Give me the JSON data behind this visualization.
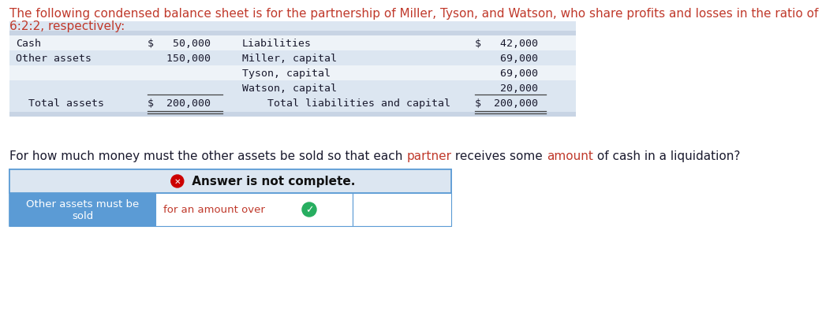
{
  "title_line1": "The following condensed balance sheet is for the partnership of Miller, Tyson, and Watson, who share profits and losses in the ratio of",
  "title_line2": "6:2:2, respectively:",
  "title_color": "#c0392b",
  "title_fontsize": 11.0,
  "table_bg_header": "#c8d4e4",
  "table_bg_light": "#dce6f1",
  "table_bg_white": "#ffffff",
  "table_font": "monospace",
  "table_fontsize": 9.5,
  "table_text_color": "#1a1a2e",
  "left_labels": [
    "Cash",
    "Other assets",
    "",
    "",
    "  Total assets"
  ],
  "left_values": [
    "$   50,000",
    "   150,000",
    "",
    "",
    "$  200,000"
  ],
  "right_labels": [
    "Liabilities",
    "Miller, capital",
    "Tyson, capital",
    "Watson, capital",
    "    Total liabilities and capital"
  ],
  "right_values": [
    "$   42,000",
    "    69,000",
    "    69,000",
    "    20,000",
    "$  200,000"
  ],
  "q_part1": "For how much money must the other assets be sold so that each ",
  "q_part2": "partner",
  "q_part3": " receives some ",
  "q_part4": "amount",
  "q_part5": " of cash in a liquidation?",
  "q_normal_color": "#1a1a2e",
  "q_highlight_color": "#c0392b",
  "q_fontsize": 11.0,
  "answer_box_bg": "#dce6f1",
  "answer_box_border": "#5b9bd5",
  "answer_strip_text": " Answer is not complete.",
  "answer_label_text": "Other assets must be\nsold",
  "answer_label_bg": "#5b9bd5",
  "answer_label_color": "#ffffff",
  "answer_fill_text": "for an amount over",
  "answer_fill_color": "#c0392b",
  "check_color": "#27ae60",
  "red_x_color": "#cc0000"
}
